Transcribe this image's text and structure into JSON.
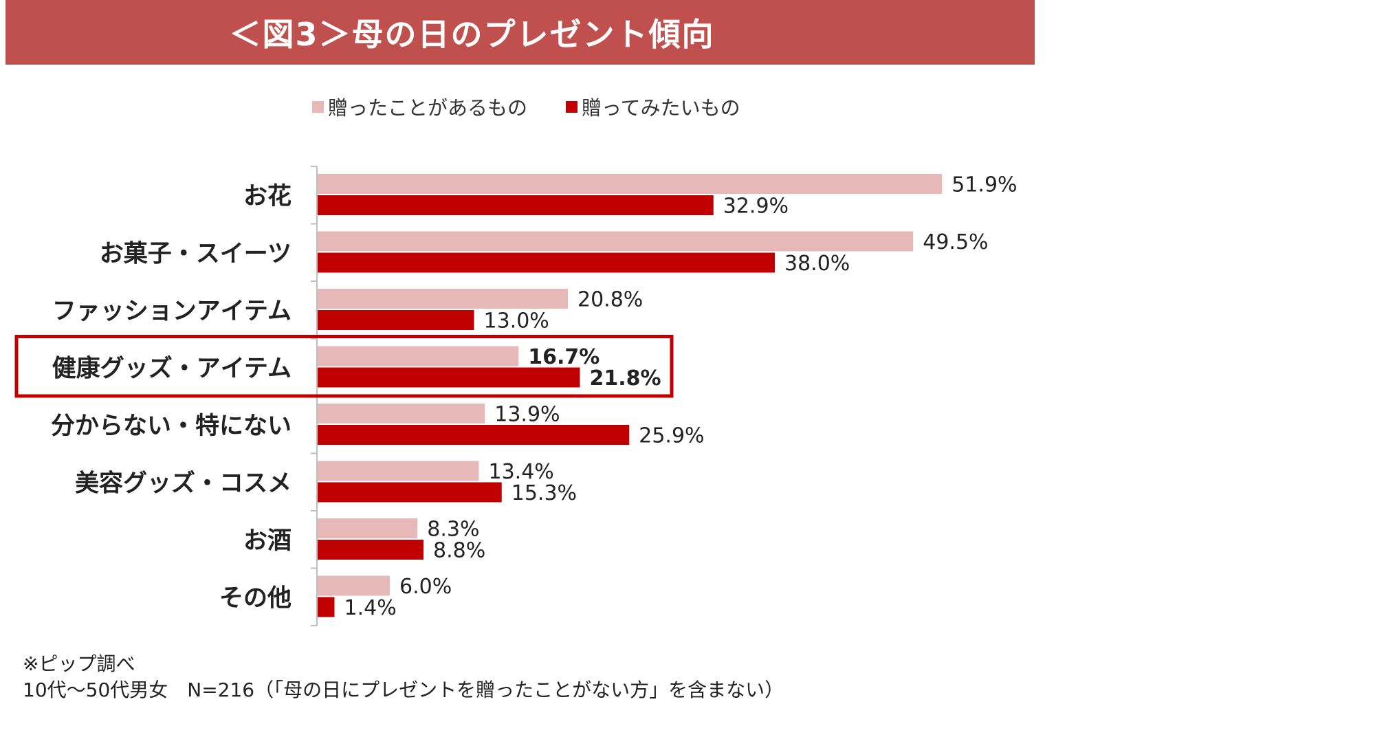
{
  "title": "＜図3＞母の日のプレゼント傾向",
  "notes": [
    "※ピップ調べ",
    "10代〜50代男女　N=216（「母の日にプレゼントを贈ったことがない方」を含まない）"
  ],
  "colors": {
    "title_bg": "#c0504d",
    "series_given": "#e6b9b8",
    "series_want": "#c00000",
    "highlight_box": "#c00000"
  },
  "highlight_category": "健康グッズ・アイテム",
  "chart_data": {
    "type": "bar",
    "orientation": "horizontal",
    "categories": [
      "お花",
      "お菓子・スイーツ",
      "ファッションアイテム",
      "健康グッズ・アイテム",
      "分からない・特にない",
      "美容グッズ・コスメ",
      "お酒",
      "その他"
    ],
    "series": [
      {
        "name": "贈ったことがあるもの",
        "values": [
          51.9,
          49.5,
          20.8,
          16.7,
          13.9,
          13.4,
          8.3,
          6.0
        ],
        "labels": [
          "51.9%",
          "49.5%",
          "20.8%",
          "16.7%",
          "13.9%",
          "13.4%",
          "8.3%",
          "6.0%"
        ]
      },
      {
        "name": "贈ってみたいもの",
        "values": [
          32.9,
          38.0,
          13.0,
          21.8,
          25.9,
          15.3,
          8.8,
          1.4
        ],
        "labels": [
          "32.9%",
          "38.0%",
          "13.0%",
          "21.8%",
          "25.9%",
          "15.3%",
          "8.8%",
          "1.4%"
        ]
      }
    ],
    "legend": "top",
    "grid": false,
    "xlim": [
      0,
      60
    ]
  }
}
